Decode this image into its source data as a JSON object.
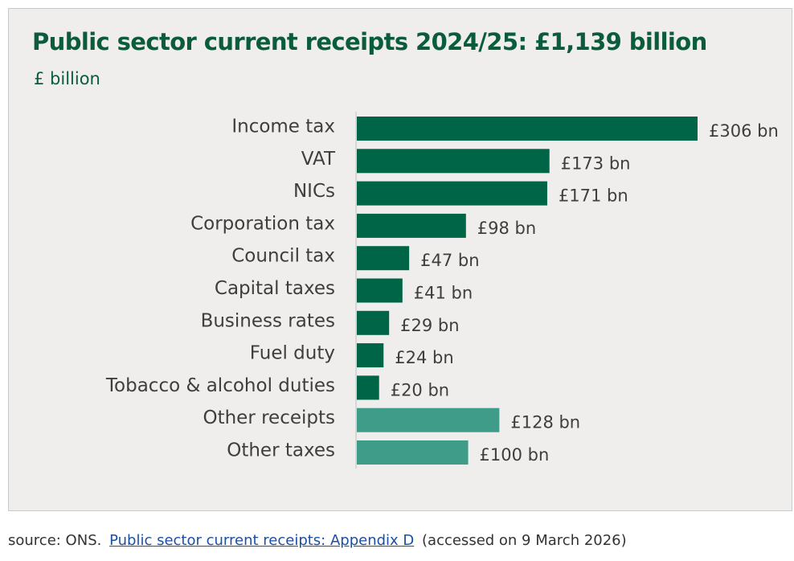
{
  "chart_data": {
    "type": "bar",
    "orientation": "horizontal",
    "title": "Public sector current receipts 2024/25: £1,139 billion",
    "unit_label": "£ billion",
    "categories": [
      "Income tax",
      "VAT",
      "NICs",
      "Corporation tax",
      "Council tax",
      "Capital taxes",
      "Business rates",
      "Fuel duty",
      "Tobacco & alcohol duties",
      "Other receipts",
      "Other taxes"
    ],
    "values": [
      306,
      173,
      171,
      98,
      47,
      41,
      29,
      24,
      20,
      128,
      100
    ],
    "value_labels": [
      "£306 bn",
      "£173 bn",
      "£171 bn",
      "£98 bn",
      "£47 bn",
      "£41 bn",
      "£29 bn",
      "£24 bn",
      "£20 bn",
      "£128 bn",
      "£100 bn"
    ],
    "bar_colors": [
      "#006446",
      "#006446",
      "#006446",
      "#006446",
      "#006446",
      "#006446",
      "#006446",
      "#006446",
      "#006446",
      "#3e9c88",
      "#3e9c88"
    ],
    "xlim": [
      0,
      306
    ],
    "grid": false
  },
  "footer": {
    "prefix": "source: ONS.",
    "link_text": "Public sector current receipts: Appendix D",
    "suffix": "(accessed on 9 March 2026)"
  },
  "colors": {
    "title": "#0a5c3c",
    "background": "#efeeec",
    "axis": "#cfcfcf",
    "link": "#1a4fa8"
  }
}
